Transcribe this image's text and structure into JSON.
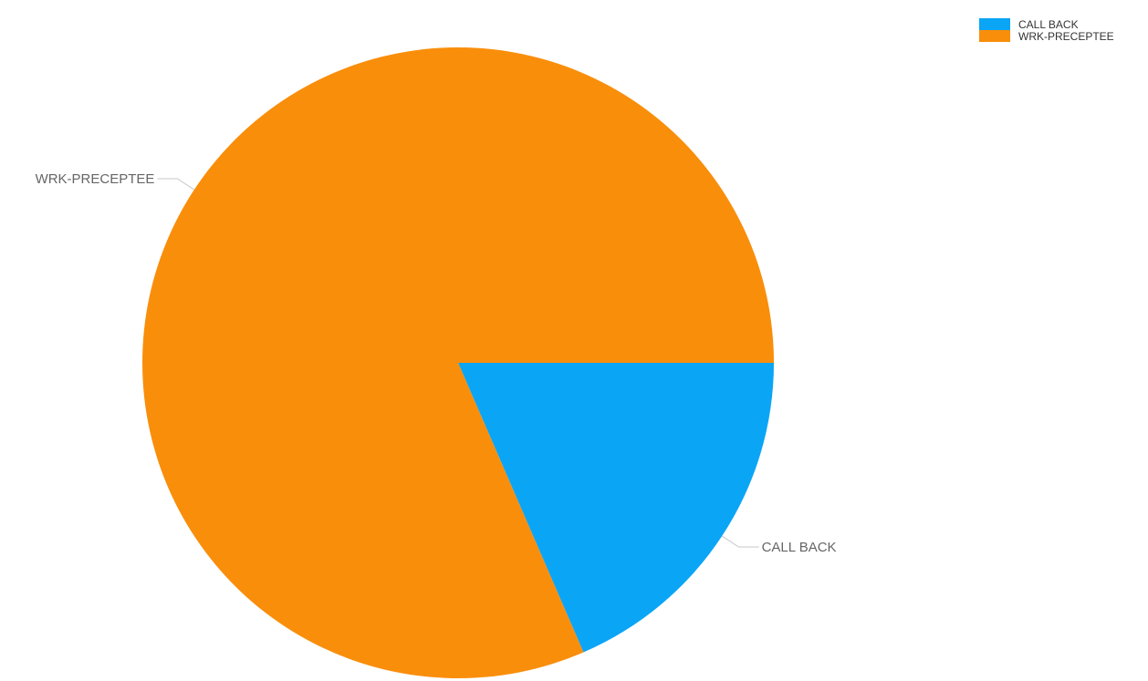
{
  "chart_data": {
    "type": "pie",
    "title": "",
    "start_angle_deg": 0,
    "direction": "clockwise",
    "legend_position": "top-right",
    "slices": [
      {
        "label": "CALL BACK",
        "value": 18.5,
        "color": "#0ba5f6"
      },
      {
        "label": "WRK-PRECEPTEE",
        "value": 81.5,
        "color": "#f98e0b"
      }
    ]
  }
}
